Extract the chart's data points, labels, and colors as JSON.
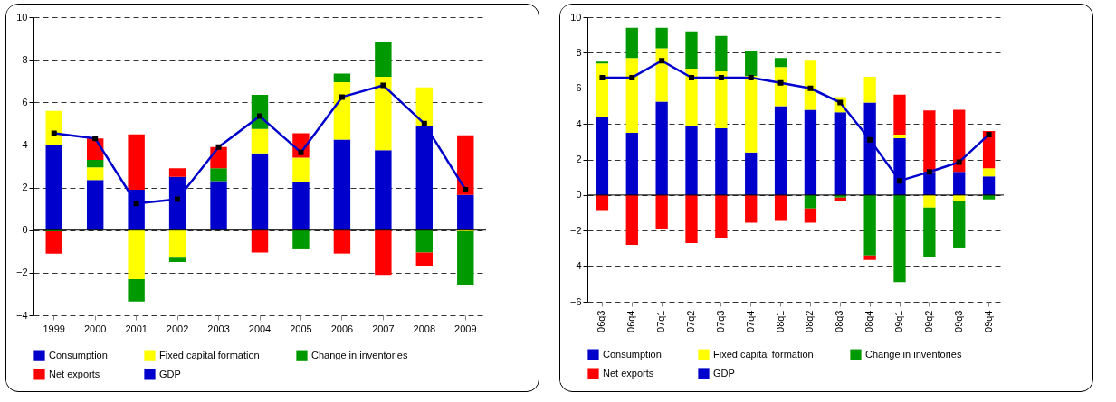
{
  "chart_data": [
    {
      "type": "bar",
      "stacked": true,
      "categories": [
        "1999",
        "2000",
        "2001",
        "2002",
        "2003",
        "2004",
        "2005",
        "2006",
        "2007",
        "2008",
        "2009"
      ],
      "ylim": [
        -4,
        10
      ],
      "yticks": [
        -4,
        -2,
        0,
        2,
        4,
        6,
        8,
        10
      ],
      "grid": "y",
      "legend": "bottom",
      "series": [
        {
          "name": "Consumption",
          "color": "#0000cc",
          "values": [
            4.0,
            2.35,
            1.9,
            2.5,
            2.3,
            3.6,
            2.25,
            4.25,
            3.75,
            4.9,
            1.65
          ]
        },
        {
          "name": "Fixed capital formation",
          "color": "#ffff00",
          "values": [
            1.6,
            0.6,
            -2.3,
            -1.3,
            null,
            1.15,
            1.15,
            2.7,
            3.45,
            1.8,
            -0.05
          ]
        },
        {
          "name": "Change in inventories",
          "color": "#009900",
          "values": [
            -0.05,
            0.35,
            -1.05,
            -0.2,
            0.6,
            1.6,
            -0.9,
            0.4,
            1.65,
            -1.05,
            -2.55
          ]
        },
        {
          "name": "Net exports",
          "color": "#ff0000",
          "values": [
            -1.05,
            1.0,
            2.6,
            0.4,
            1.0,
            -1.05,
            1.15,
            -1.1,
            -2.1,
            -0.65,
            2.8
          ]
        },
        {
          "name": "GDP",
          "type": "line",
          "color": "#0000cc",
          "marker": "square",
          "line_style": "solid",
          "values": [
            4.55,
            4.3,
            1.25,
            1.45,
            3.9,
            5.35,
            3.65,
            6.25,
            6.8,
            5.0,
            1.9
          ]
        }
      ]
    },
    {
      "type": "bar",
      "stacked": true,
      "categories": [
        "06q3",
        "06q4",
        "07q1",
        "07q2",
        "07q3",
        "07q4",
        "08q1",
        "08q2",
        "08q3",
        "08q4",
        "09q1",
        "09q2",
        "09q3",
        "09q4"
      ],
      "ylim": [
        -6,
        10
      ],
      "yticks": [
        -6,
        -4,
        -2,
        0,
        2,
        4,
        6,
        8,
        10
      ],
      "grid": "y",
      "legend": "bottom",
      "series": [
        {
          "name": "Consumption",
          "color": "#0000cc",
          "values": [
            4.4,
            3.5,
            5.25,
            3.9,
            3.75,
            2.4,
            5.0,
            4.8,
            4.65,
            5.2,
            3.2,
            1.3,
            1.3,
            1.05
          ]
        },
        {
          "name": "Fixed capital formation",
          "color": "#ffff00",
          "values": [
            3.0,
            4.2,
            3.0,
            3.2,
            3.2,
            4.3,
            2.2,
            2.8,
            0.85,
            1.45,
            0.2,
            -0.7,
            -0.35,
            0.45
          ]
        },
        {
          "name": "Change in inventories",
          "color": "#009900",
          "values": [
            0.1,
            1.7,
            1.15,
            2.1,
            2.0,
            1.4,
            0.5,
            -0.75,
            -0.15,
            -3.4,
            -4.9,
            -2.8,
            -2.6,
            -0.25
          ]
        },
        {
          "name": "Net exports",
          "color": "#ff0000",
          "values": [
            -0.9,
            -2.8,
            -1.9,
            -2.7,
            -2.4,
            -1.55,
            -1.45,
            -0.8,
            -0.2,
            -0.25,
            2.25,
            3.45,
            3.5,
            2.1
          ]
        },
        {
          "name": "GDP",
          "type": "line",
          "color": "#0000cc",
          "marker": "square",
          "line_style": "solid",
          "values": [
            6.6,
            6.6,
            7.55,
            6.6,
            6.6,
            6.6,
            6.3,
            6.0,
            5.2,
            3.1,
            0.8,
            1.3,
            1.85,
            3.4
          ]
        }
      ]
    }
  ]
}
